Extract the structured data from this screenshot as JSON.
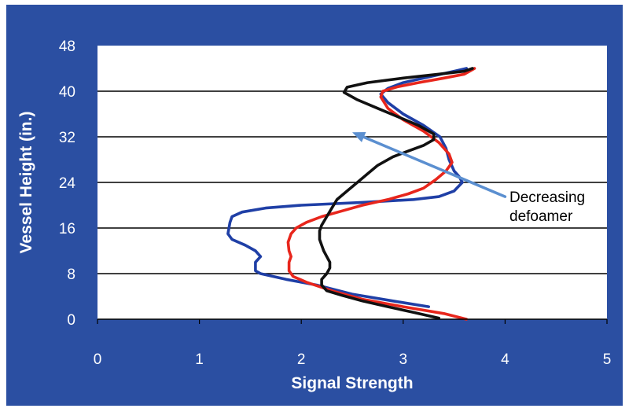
{
  "chart_data": {
    "type": "line",
    "title": "",
    "xlabel": "Signal Strength",
    "ylabel": "Vessel Height (in.)",
    "xlim": [
      0,
      5
    ],
    "ylim": [
      0,
      48
    ],
    "x_ticks": [
      0,
      1,
      2,
      3,
      4,
      5
    ],
    "y_ticks": [
      0,
      8,
      16,
      24,
      32,
      40,
      48
    ],
    "y_gridlines": [
      8,
      16,
      24,
      32,
      40
    ],
    "grid": "horizontal",
    "legend": "none",
    "annotation": {
      "lines": [
        "Decreasing",
        "defoamer"
      ],
      "arrow_from": [
        4.0,
        21.5
      ],
      "arrow_to": [
        2.5,
        32.8
      ],
      "color": "#5b8fd0"
    },
    "series": [
      {
        "color": "#1f3fa6",
        "points": [
          [
            3.25,
            2.2
          ],
          [
            2.9,
            3.2
          ],
          [
            2.5,
            4.4
          ],
          [
            2.15,
            6.0
          ],
          [
            1.85,
            7.0
          ],
          [
            1.6,
            8.0
          ],
          [
            1.55,
            8.5
          ],
          [
            1.55,
            10.0
          ],
          [
            1.6,
            11.0
          ],
          [
            1.55,
            12.0
          ],
          [
            1.45,
            13.0
          ],
          [
            1.32,
            14.0
          ],
          [
            1.28,
            15.0
          ],
          [
            1.3,
            17.0
          ],
          [
            1.32,
            18.0
          ],
          [
            1.42,
            18.8
          ],
          [
            1.65,
            19.5
          ],
          [
            2.0,
            20.0
          ],
          [
            2.6,
            20.5
          ],
          [
            3.1,
            21.0
          ],
          [
            3.35,
            21.5
          ],
          [
            3.5,
            22.5
          ],
          [
            3.58,
            24.0
          ],
          [
            3.55,
            25.0
          ],
          [
            3.5,
            26.0
          ],
          [
            3.45,
            28.0
          ],
          [
            3.42,
            30.0
          ],
          [
            3.36,
            32.0
          ],
          [
            3.2,
            34.0
          ],
          [
            3.0,
            36.0
          ],
          [
            2.85,
            38.0
          ],
          [
            2.78,
            39.5
          ],
          [
            2.85,
            40.5
          ],
          [
            3.0,
            41.5
          ],
          [
            3.25,
            42.5
          ],
          [
            3.5,
            43.5
          ],
          [
            3.62,
            44.0
          ]
        ]
      },
      {
        "color": "#e8261c",
        "points": [
          [
            3.62,
            0.0
          ],
          [
            3.4,
            1.0
          ],
          [
            3.0,
            2.2
          ],
          [
            2.6,
            3.5
          ],
          [
            2.3,
            5.0
          ],
          [
            2.05,
            6.5
          ],
          [
            1.92,
            7.5
          ],
          [
            1.88,
            8.5
          ],
          [
            1.88,
            10.0
          ],
          [
            1.9,
            11.0
          ],
          [
            1.88,
            12.0
          ],
          [
            1.87,
            13.5
          ],
          [
            1.9,
            15.0
          ],
          [
            1.95,
            16.0
          ],
          [
            2.05,
            17.0
          ],
          [
            2.2,
            18.0
          ],
          [
            2.4,
            19.0
          ],
          [
            2.6,
            20.0
          ],
          [
            2.85,
            21.0
          ],
          [
            3.05,
            22.0
          ],
          [
            3.2,
            23.0
          ],
          [
            3.32,
            24.5
          ],
          [
            3.42,
            26.0
          ],
          [
            3.48,
            27.5
          ],
          [
            3.45,
            29.0
          ],
          [
            3.35,
            31.0
          ],
          [
            3.2,
            33.0
          ],
          [
            3.0,
            35.0
          ],
          [
            2.85,
            37.0
          ],
          [
            2.78,
            39.0
          ],
          [
            2.8,
            40.0
          ],
          [
            2.95,
            40.8
          ],
          [
            3.15,
            41.5
          ],
          [
            3.4,
            42.3
          ],
          [
            3.6,
            43.0
          ],
          [
            3.7,
            44.0
          ]
        ]
      },
      {
        "color": "#111111",
        "points": [
          [
            3.35,
            0.2
          ],
          [
            3.1,
            1.2
          ],
          [
            2.85,
            2.2
          ],
          [
            2.6,
            3.2
          ],
          [
            2.4,
            4.2
          ],
          [
            2.25,
            5.0
          ],
          [
            2.2,
            6.0
          ],
          [
            2.2,
            7.0
          ],
          [
            2.25,
            8.0
          ],
          [
            2.28,
            9.0
          ],
          [
            2.28,
            10.0
          ],
          [
            2.25,
            11.0
          ],
          [
            2.22,
            12.0
          ],
          [
            2.2,
            13.0
          ],
          [
            2.18,
            14.0
          ],
          [
            2.18,
            15.5
          ],
          [
            2.2,
            16.5
          ],
          [
            2.25,
            18.0
          ],
          [
            2.3,
            19.5
          ],
          [
            2.35,
            21.0
          ],
          [
            2.45,
            22.5
          ],
          [
            2.55,
            24.0
          ],
          [
            2.65,
            25.5
          ],
          [
            2.75,
            27.0
          ],
          [
            2.9,
            28.5
          ],
          [
            3.05,
            29.5
          ],
          [
            3.2,
            30.5
          ],
          [
            3.3,
            31.5
          ],
          [
            3.3,
            32.5
          ],
          [
            3.15,
            34.0
          ],
          [
            2.95,
            35.5
          ],
          [
            2.75,
            37.0
          ],
          [
            2.55,
            38.5
          ],
          [
            2.42,
            39.8
          ],
          [
            2.45,
            40.7
          ],
          [
            2.65,
            41.5
          ],
          [
            3.0,
            42.3
          ],
          [
            3.35,
            43.0
          ],
          [
            3.6,
            43.5
          ],
          [
            3.68,
            44.0
          ]
        ]
      }
    ]
  }
}
